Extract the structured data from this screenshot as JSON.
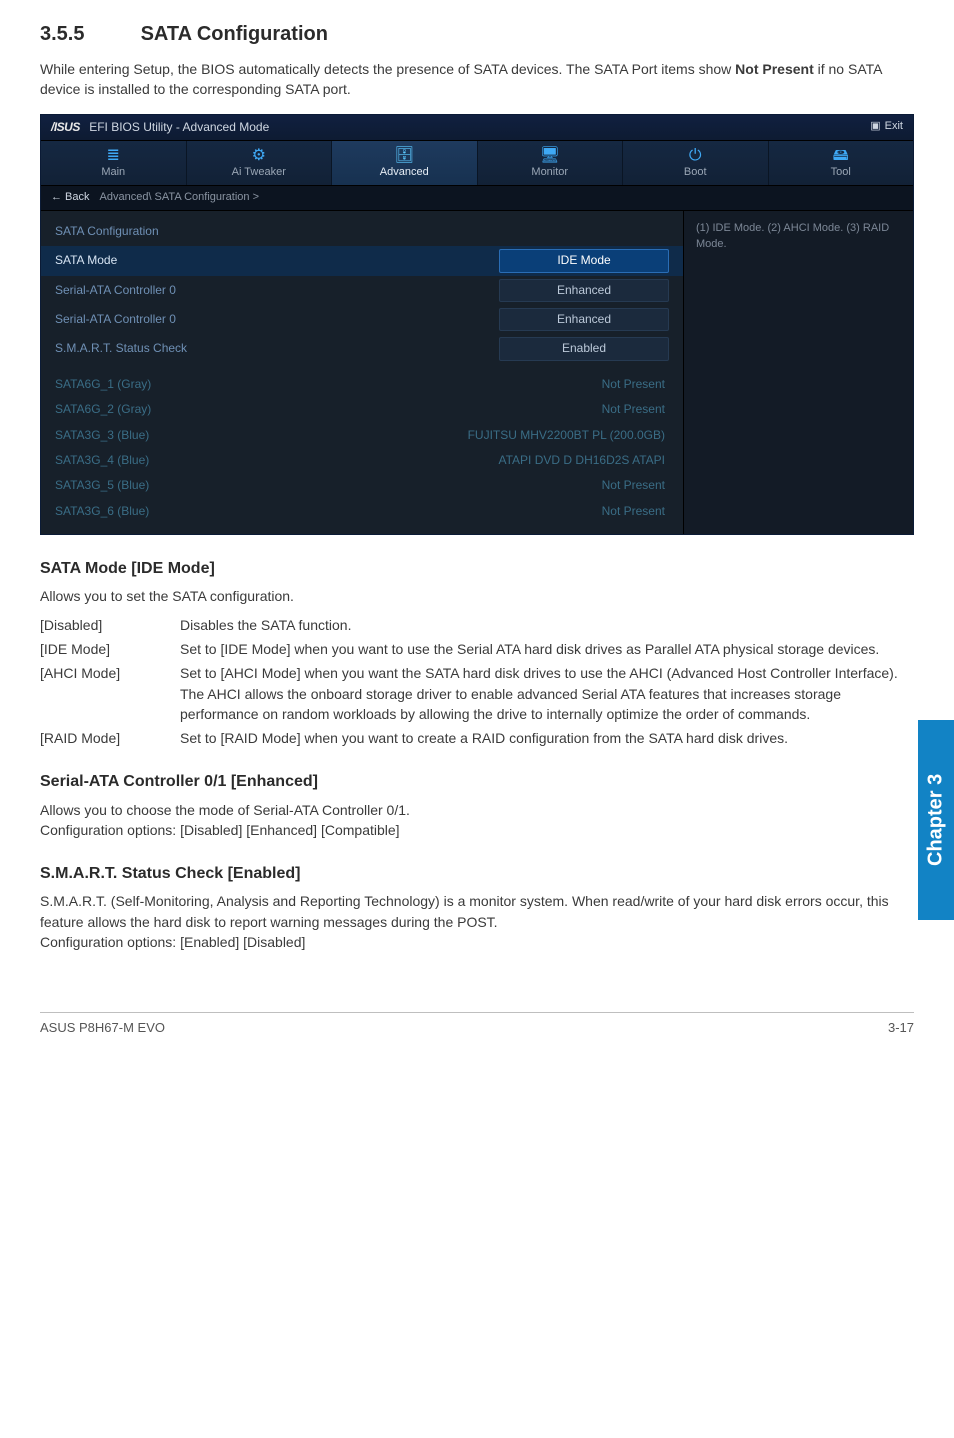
{
  "heading": {
    "number": "3.5.5",
    "title": "SATA Configuration"
  },
  "intro": {
    "pre": "While entering Setup, the BIOS automatically detects the presence of SATA devices. The SATA Port items show ",
    "bold": "Not Present",
    "post": " if no SATA device is installed to the corresponding SATA port."
  },
  "bios": {
    "brand": "/ISUS",
    "title": "EFI BIOS Utility - Advanced Mode",
    "exit": "Exit",
    "tabs": [
      {
        "icon": "≣",
        "label": "Main"
      },
      {
        "icon": "⚙",
        "label": "Ai  Tweaker"
      },
      {
        "icon": "🗄",
        "label": "Advanced",
        "active": true
      },
      {
        "icon": "🖥",
        "label": "Monitor"
      },
      {
        "icon": "⏻",
        "label": "Boot"
      },
      {
        "icon": "🖴",
        "label": "Tool"
      }
    ],
    "crumb": {
      "back": "← Back",
      "path": "Advanced\\ SATA Configuration  >"
    },
    "help": "(1) IDE Mode. (2) AHCI Mode. (3) RAID Mode.",
    "subhead": "SATA Configuration",
    "rows": [
      {
        "lab": "SATA Mode",
        "val": "IDE Mode",
        "boxed": true,
        "selected": true
      },
      {
        "lab": "Serial-ATA Controller 0",
        "val": "Enhanced",
        "boxed": true
      },
      {
        "lab": "Serial-ATA Controller 0",
        "val": "Enhanced",
        "boxed": true
      },
      {
        "lab": "S.M.A.R.T. Status Check",
        "val": "Enabled",
        "boxed": true
      }
    ],
    "info": [
      {
        "lab": "SATA6G_1 (Gray)",
        "val": "Not Present"
      },
      {
        "lab": "SATA6G_2 (Gray)",
        "val": "Not Present"
      },
      {
        "lab": "SATA3G_3 (Blue)",
        "val": "FUJITSU MHV2200BT PL (200.0GB)"
      },
      {
        "lab": "SATA3G_4 (Blue)",
        "val": "ATAPI DVD D DH16D2S ATAPI"
      },
      {
        "lab": "SATA3G_5 (Blue)",
        "val": "Not Present"
      },
      {
        "lab": "SATA3G_6 (Blue)",
        "val": "Not Present"
      }
    ]
  },
  "sections": [
    {
      "title": "SATA Mode [IDE Mode]",
      "desc": "Allows you to set the SATA configuration.",
      "opts": [
        {
          "k": "[Disabled]",
          "t": "Disables the SATA function."
        },
        {
          "k": "[IDE Mode]",
          "t": "Set to [IDE Mode] when you want to use the Serial ATA hard disk drives as Parallel ATA physical storage devices."
        },
        {
          "k": "[AHCI Mode]",
          "t": "Set to [AHCI Mode] when you want the SATA hard disk drives to use the AHCI (Advanced Host Controller Interface). The AHCI allows the onboard storage driver to enable advanced Serial ATA features that increases storage performance on random workloads by allowing the drive to internally optimize the order of commands."
        },
        {
          "k": "[RAID Mode]",
          "t": "Set to [RAID Mode] when you want to create a RAID configuration from the SATA hard disk drives."
        }
      ]
    },
    {
      "title": "Serial-ATA Controller 0/1 [Enhanced]",
      "desc": "Allows you to choose the mode of Serial-ATA Controller 0/1.\nConfiguration options: [Disabled] [Enhanced] [Compatible]"
    },
    {
      "title": "S.M.A.R.T. Status Check [Enabled]",
      "desc": "S.M.A.R.T. (Self-Monitoring, Analysis and Reporting Technology) is a monitor system. When read/write of your hard disk errors occur, this feature allows the hard disk to report warning messages during the POST.\nConfiguration options: [Enabled] [Disabled]"
    }
  ],
  "sidetab": "Chapter 3",
  "footer": {
    "left": "ASUS P8H67-M EVO",
    "right": "3-17"
  }
}
